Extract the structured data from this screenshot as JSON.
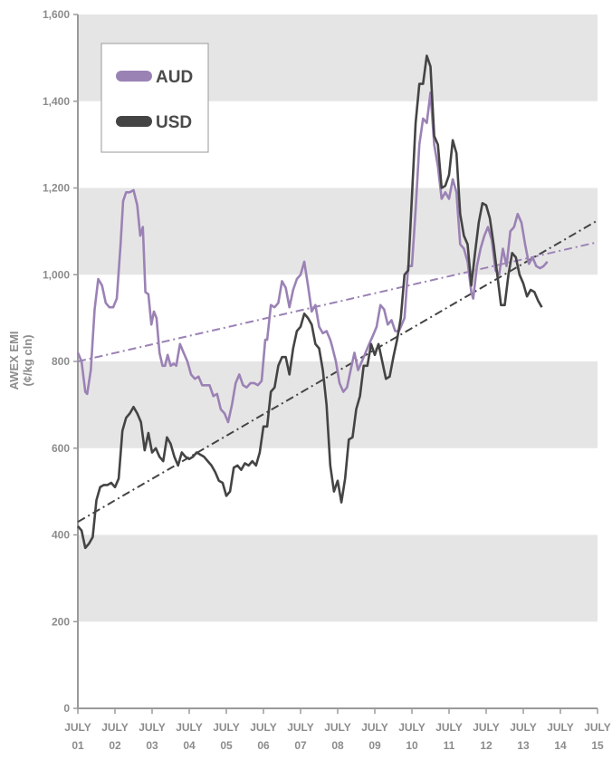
{
  "chart_data": {
    "type": "line",
    "ylabel_line1": "AWEX EMI",
    "ylabel_line2": "(¢/kg cln)",
    "ylim": [
      0,
      1600
    ],
    "y_ticks": [
      "0",
      "200",
      "400",
      "600",
      "800",
      "1,000",
      "1,200",
      "1,400",
      "1,600"
    ],
    "x_ticks": [
      {
        "top": "JULY",
        "bottom": "01"
      },
      {
        "top": "JULY",
        "bottom": "02"
      },
      {
        "top": "JULY",
        "bottom": "03"
      },
      {
        "top": "JULY",
        "bottom": "04"
      },
      {
        "top": "JULY",
        "bottom": "05"
      },
      {
        "top": "JULY",
        "bottom": "06"
      },
      {
        "top": "JULY",
        "bottom": "07"
      },
      {
        "top": "JULY",
        "bottom": "08"
      },
      {
        "top": "JULY",
        "bottom": "09"
      },
      {
        "top": "JULY",
        "bottom": "10"
      },
      {
        "top": "JULY",
        "bottom": "11"
      },
      {
        "top": "JULY",
        "bottom": "12"
      },
      {
        "top": "JULY",
        "bottom": "13"
      },
      {
        "top": "JULY",
        "bottom": "14"
      },
      {
        "top": "JULY",
        "bottom": "15"
      }
    ],
    "xlim": [
      2001.5,
      2015.5
    ],
    "legend_placement": "top-left",
    "background_bands": "alternating grey bands every 200",
    "series": [
      {
        "name": "AUD",
        "color": "#9b82b5",
        "points": [
          [
            2001.5,
            820
          ],
          [
            2001.6,
            800
          ],
          [
            2001.7,
            730
          ],
          [
            2001.75,
            725
          ],
          [
            2001.85,
            780
          ],
          [
            2001.95,
            920
          ],
          [
            2002.05,
            990
          ],
          [
            2002.15,
            975
          ],
          [
            2002.25,
            935
          ],
          [
            2002.35,
            925
          ],
          [
            2002.45,
            925
          ],
          [
            2002.55,
            945
          ],
          [
            2002.65,
            1070
          ],
          [
            2002.72,
            1170
          ],
          [
            2002.8,
            1190
          ],
          [
            2002.9,
            1190
          ],
          [
            2003.0,
            1195
          ],
          [
            2003.1,
            1160
          ],
          [
            2003.18,
            1090
          ],
          [
            2003.25,
            1110
          ],
          [
            2003.32,
            960
          ],
          [
            2003.4,
            955
          ],
          [
            2003.48,
            885
          ],
          [
            2003.55,
            915
          ],
          [
            2003.62,
            900
          ],
          [
            2003.7,
            820
          ],
          [
            2003.78,
            790
          ],
          [
            2003.85,
            790
          ],
          [
            2003.92,
            815
          ],
          [
            2004.0,
            790
          ],
          [
            2004.08,
            795
          ],
          [
            2004.15,
            790
          ],
          [
            2004.25,
            840
          ],
          [
            2004.35,
            820
          ],
          [
            2004.45,
            800
          ],
          [
            2004.55,
            770
          ],
          [
            2004.65,
            760
          ],
          [
            2004.75,
            765
          ],
          [
            2004.85,
            745
          ],
          [
            2004.95,
            745
          ],
          [
            2005.05,
            745
          ],
          [
            2005.15,
            720
          ],
          [
            2005.25,
            725
          ],
          [
            2005.35,
            690
          ],
          [
            2005.45,
            680
          ],
          [
            2005.55,
            660
          ],
          [
            2005.65,
            700
          ],
          [
            2005.75,
            750
          ],
          [
            2005.85,
            770
          ],
          [
            2005.95,
            745
          ],
          [
            2006.05,
            740
          ],
          [
            2006.15,
            750
          ],
          [
            2006.25,
            750
          ],
          [
            2006.35,
            745
          ],
          [
            2006.45,
            755
          ],
          [
            2006.55,
            850
          ],
          [
            2006.6,
            850
          ],
          [
            2006.7,
            930
          ],
          [
            2006.8,
            925
          ],
          [
            2006.9,
            935
          ],
          [
            2007.0,
            985
          ],
          [
            2007.1,
            970
          ],
          [
            2007.2,
            925
          ],
          [
            2007.3,
            965
          ],
          [
            2007.4,
            990
          ],
          [
            2007.5,
            1000
          ],
          [
            2007.6,
            1030
          ],
          [
            2007.7,
            975
          ],
          [
            2007.8,
            915
          ],
          [
            2007.9,
            930
          ],
          [
            2008.0,
            880
          ],
          [
            2008.1,
            865
          ],
          [
            2008.2,
            870
          ],
          [
            2008.3,
            850
          ],
          [
            2008.35,
            835
          ],
          [
            2008.45,
            800
          ],
          [
            2008.55,
            750
          ],
          [
            2008.65,
            730
          ],
          [
            2008.75,
            740
          ],
          [
            2008.85,
            780
          ],
          [
            2008.95,
            820
          ],
          [
            2009.05,
            780
          ],
          [
            2009.15,
            800
          ],
          [
            2009.25,
            820
          ],
          [
            2009.35,
            840
          ],
          [
            2009.45,
            860
          ],
          [
            2009.55,
            880
          ],
          [
            2009.65,
            930
          ],
          [
            2009.75,
            920
          ],
          [
            2009.85,
            885
          ],
          [
            2009.95,
            895
          ],
          [
            2010.05,
            870
          ],
          [
            2010.15,
            870
          ],
          [
            2010.3,
            900
          ],
          [
            2010.4,
            1020
          ],
          [
            2010.5,
            1020
          ],
          [
            2010.6,
            1150
          ],
          [
            2010.7,
            1300
          ],
          [
            2010.8,
            1360
          ],
          [
            2010.9,
            1350
          ],
          [
            2011.0,
            1420
          ],
          [
            2011.1,
            1300
          ],
          [
            2011.2,
            1250
          ],
          [
            2011.3,
            1175
          ],
          [
            2011.4,
            1190
          ],
          [
            2011.5,
            1175
          ],
          [
            2011.6,
            1220
          ],
          [
            2011.7,
            1190
          ],
          [
            2011.8,
            1070
          ],
          [
            2011.9,
            1060
          ],
          [
            2012.0,
            1030
          ],
          [
            2012.1,
            960
          ],
          [
            2012.15,
            945
          ],
          [
            2012.25,
            1020
          ],
          [
            2012.35,
            1060
          ],
          [
            2012.45,
            1090
          ],
          [
            2012.55,
            1110
          ],
          [
            2012.65,
            1080
          ],
          [
            2012.75,
            1010
          ],
          [
            2012.85,
            1000
          ],
          [
            2012.95,
            1060
          ],
          [
            2013.05,
            1020
          ],
          [
            2013.15,
            1100
          ],
          [
            2013.25,
            1110
          ],
          [
            2013.35,
            1140
          ],
          [
            2013.45,
            1120
          ],
          [
            2013.55,
            1070
          ],
          [
            2013.65,
            1025
          ],
          [
            2013.75,
            1040
          ],
          [
            2013.85,
            1020
          ],
          [
            2013.95,
            1015
          ],
          [
            2014.05,
            1020
          ],
          [
            2014.15,
            1030
          ]
        ]
      },
      {
        "name": "USD",
        "color": "#444444",
        "points": [
          [
            2001.5,
            420
          ],
          [
            2001.6,
            410
          ],
          [
            2001.7,
            370
          ],
          [
            2001.8,
            380
          ],
          [
            2001.9,
            395
          ],
          [
            2002.0,
            480
          ],
          [
            2002.1,
            510
          ],
          [
            2002.2,
            515
          ],
          [
            2002.3,
            515
          ],
          [
            2002.4,
            520
          ],
          [
            2002.5,
            510
          ],
          [
            2002.6,
            530
          ],
          [
            2002.7,
            640
          ],
          [
            2002.8,
            670
          ],
          [
            2002.9,
            680
          ],
          [
            2003.0,
            695
          ],
          [
            2003.1,
            680
          ],
          [
            2003.2,
            660
          ],
          [
            2003.3,
            595
          ],
          [
            2003.4,
            635
          ],
          [
            2003.5,
            590
          ],
          [
            2003.6,
            600
          ],
          [
            2003.7,
            580
          ],
          [
            2003.8,
            570
          ],
          [
            2003.9,
            625
          ],
          [
            2004.0,
            610
          ],
          [
            2004.1,
            580
          ],
          [
            2004.2,
            560
          ],
          [
            2004.3,
            590
          ],
          [
            2004.4,
            580
          ],
          [
            2004.5,
            575
          ],
          [
            2004.6,
            580
          ],
          [
            2004.7,
            590
          ],
          [
            2004.8,
            585
          ],
          [
            2004.9,
            580
          ],
          [
            2005.0,
            570
          ],
          [
            2005.1,
            560
          ],
          [
            2005.2,
            545
          ],
          [
            2005.3,
            525
          ],
          [
            2005.4,
            520
          ],
          [
            2005.5,
            490
          ],
          [
            2005.6,
            500
          ],
          [
            2005.7,
            555
          ],
          [
            2005.8,
            560
          ],
          [
            2005.9,
            550
          ],
          [
            2006.0,
            565
          ],
          [
            2006.1,
            560
          ],
          [
            2006.2,
            570
          ],
          [
            2006.3,
            560
          ],
          [
            2006.4,
            590
          ],
          [
            2006.5,
            650
          ],
          [
            2006.6,
            650
          ],
          [
            2006.7,
            730
          ],
          [
            2006.8,
            740
          ],
          [
            2006.9,
            790
          ],
          [
            2007.0,
            810
          ],
          [
            2007.1,
            810
          ],
          [
            2007.2,
            770
          ],
          [
            2007.3,
            830
          ],
          [
            2007.4,
            870
          ],
          [
            2007.5,
            880
          ],
          [
            2007.6,
            910
          ],
          [
            2007.7,
            900
          ],
          [
            2007.8,
            885
          ],
          [
            2007.9,
            840
          ],
          [
            2008.0,
            830
          ],
          [
            2008.1,
            780
          ],
          [
            2008.2,
            700
          ],
          [
            2008.3,
            560
          ],
          [
            2008.4,
            500
          ],
          [
            2008.5,
            525
          ],
          [
            2008.6,
            475
          ],
          [
            2008.7,
            530
          ],
          [
            2008.8,
            620
          ],
          [
            2008.9,
            625
          ],
          [
            2009.0,
            690
          ],
          [
            2009.1,
            720
          ],
          [
            2009.2,
            790
          ],
          [
            2009.3,
            790
          ],
          [
            2009.4,
            840
          ],
          [
            2009.5,
            815
          ],
          [
            2009.6,
            840
          ],
          [
            2009.7,
            800
          ],
          [
            2009.8,
            760
          ],
          [
            2009.9,
            765
          ],
          [
            2010.0,
            810
          ],
          [
            2010.1,
            850
          ],
          [
            2010.2,
            900
          ],
          [
            2010.3,
            1000
          ],
          [
            2010.4,
            1010
          ],
          [
            2010.5,
            1180
          ],
          [
            2010.6,
            1350
          ],
          [
            2010.7,
            1440
          ],
          [
            2010.8,
            1440
          ],
          [
            2010.9,
            1505
          ],
          [
            2011.0,
            1480
          ],
          [
            2011.1,
            1320
          ],
          [
            2011.2,
            1300
          ],
          [
            2011.3,
            1200
          ],
          [
            2011.4,
            1205
          ],
          [
            2011.5,
            1230
          ],
          [
            2011.6,
            1310
          ],
          [
            2011.7,
            1280
          ],
          [
            2011.8,
            1140
          ],
          [
            2011.9,
            1090
          ],
          [
            2012.0,
            1070
          ],
          [
            2012.1,
            975
          ],
          [
            2012.2,
            1050
          ],
          [
            2012.3,
            1120
          ],
          [
            2012.4,
            1165
          ],
          [
            2012.5,
            1160
          ],
          [
            2012.6,
            1130
          ],
          [
            2012.7,
            1070
          ],
          [
            2012.8,
            1000
          ],
          [
            2012.9,
            930
          ],
          [
            2013.0,
            930
          ],
          [
            2013.1,
            1000
          ],
          [
            2013.2,
            1050
          ],
          [
            2013.3,
            1040
          ],
          [
            2013.4,
            1000
          ],
          [
            2013.5,
            980
          ],
          [
            2013.6,
            950
          ],
          [
            2013.7,
            965
          ],
          [
            2013.8,
            960
          ],
          [
            2013.9,
            940
          ],
          [
            2014.0,
            925
          ]
        ]
      }
    ],
    "trendlines": [
      {
        "series": "AUD",
        "color": "#9b82b5",
        "style": "dash-dot",
        "start": [
          2001.5,
          800
        ],
        "end": [
          2015.5,
          1075
        ]
      },
      {
        "series": "USD",
        "color": "#444444",
        "style": "dash-dot",
        "start": [
          2001.5,
          430
        ],
        "end": [
          2015.5,
          1125
        ]
      }
    ]
  },
  "legend": {
    "items": [
      {
        "label": "AUD",
        "color": "#9b82b5"
      },
      {
        "label": "USD",
        "color": "#444444"
      }
    ]
  }
}
